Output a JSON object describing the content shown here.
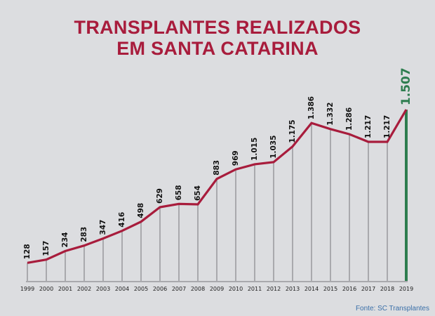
{
  "chart_data": {
    "type": "line",
    "title": [
      "TRANSPLANTES REALIZADOS",
      "EM SANTA CATARINA"
    ],
    "xlabel": "",
    "ylabel": "",
    "categories": [
      "1999",
      "2000",
      "2001",
      "2002",
      "2003",
      "2004",
      "2005",
      "2006",
      "2007",
      "2008",
      "2009",
      "2010",
      "2011",
      "2012",
      "2013",
      "2014",
      "2015",
      "2016",
      "2017",
      "2018",
      "2019"
    ],
    "values": [
      128,
      157,
      234,
      283,
      347,
      416,
      498,
      629,
      658,
      654,
      883,
      969,
      1015,
      1035,
      1175,
      1386,
      1332,
      1286,
      1217,
      1217,
      1507
    ],
    "data_labels": [
      "128",
      "157",
      "234",
      "283",
      "347",
      "416",
      "498",
      "629",
      "658",
      "654",
      "883",
      "969",
      "1.015",
      "1.035",
      "1.175",
      "1.386",
      "1.332",
      "1.286",
      "1.217",
      "1.217",
      "1.507"
    ],
    "ylim": [
      0,
      1507
    ],
    "grid": false,
    "highlight_index": 20,
    "colors": {
      "line": "#a81c3c",
      "highlight": "#2e7d4f",
      "drop": "#a9a9ad",
      "axis": "#a9a9ad",
      "title": "#a81c3c",
      "source": "#3a6fa8"
    }
  },
  "source": "Fonte: SC Transplantes"
}
